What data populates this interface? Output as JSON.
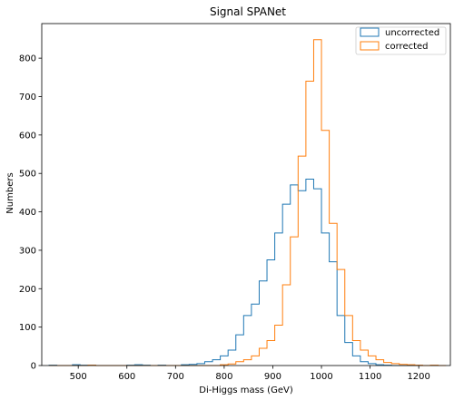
{
  "chart_data": {
    "type": "histogram",
    "title": "Signal SPANet",
    "xlabel": "Di-Higgs mass (GeV)",
    "ylabel": "Numbers",
    "xlim": [
      425,
      1265
    ],
    "ylim": [
      0,
      890
    ],
    "xticks": [
      500,
      600,
      700,
      800,
      900,
      1000,
      1100,
      1200
    ],
    "yticks": [
      0,
      100,
      200,
      300,
      400,
      500,
      600,
      700,
      800
    ],
    "grid": false,
    "legend_position": "top-right",
    "bin_edges": [
      440,
      456,
      472,
      488,
      504,
      520,
      536,
      552,
      568,
      584,
      600,
      616,
      632,
      648,
      664,
      680,
      696,
      712,
      728,
      744,
      760,
      776,
      792,
      808,
      824,
      840,
      856,
      872,
      888,
      904,
      920,
      936,
      952,
      968,
      984,
      1000,
      1016,
      1032,
      1048,
      1064,
      1080,
      1096,
      1112,
      1128,
      1144,
      1160,
      1176,
      1192,
      1208,
      1224,
      1240,
      1256
    ],
    "series": [
      {
        "name": "uncorrected",
        "color": "#1f77b4",
        "values": [
          1,
          0,
          0,
          2,
          1,
          1,
          0,
          0,
          0,
          0,
          1,
          2,
          1,
          0,
          1,
          0,
          0,
          2,
          3,
          5,
          10,
          15,
          25,
          40,
          80,
          130,
          160,
          220,
          275,
          345,
          420,
          470,
          455,
          485,
          460,
          345,
          270,
          130,
          60,
          25,
          10,
          5,
          2,
          1,
          0,
          0,
          0,
          0,
          0,
          0,
          0
        ]
      },
      {
        "name": "corrected",
        "color": "#ff7f0e",
        "values": [
          0,
          0,
          0,
          0,
          0,
          1,
          0,
          0,
          0,
          0,
          0,
          0,
          0,
          0,
          0,
          0,
          0,
          0,
          0,
          0,
          0,
          0,
          2,
          4,
          10,
          15,
          25,
          45,
          65,
          105,
          210,
          335,
          545,
          740,
          848,
          612,
          370,
          250,
          130,
          65,
          40,
          25,
          15,
          8,
          5,
          3,
          2,
          1,
          0,
          1,
          0
        ]
      }
    ]
  }
}
